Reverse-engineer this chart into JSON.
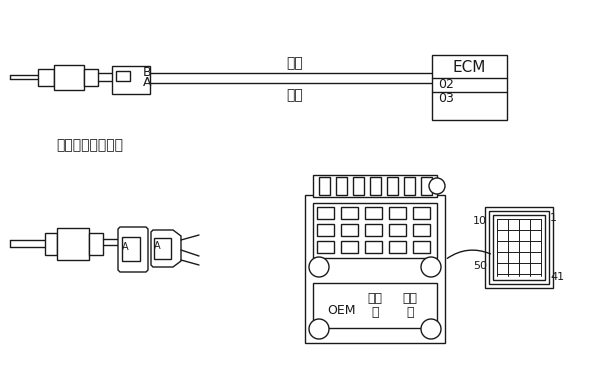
{
  "bg_color": "#ffffff",
  "line_color": "#1a1a1a",
  "title_label": "冷却液温度传感器",
  "signal_label": "信号",
  "return_label": "回路",
  "ecm_label": "ECM",
  "ecm_02": "02",
  "ecm_03": "03",
  "connector_B": "B",
  "connector_A": "A",
  "oem_label": "OEM",
  "pin_10": "10",
  "pin_50": "50",
  "pin_1": "1",
  "pin_41": "41",
  "figsize": [
    6.0,
    3.75
  ],
  "dpi": 100
}
